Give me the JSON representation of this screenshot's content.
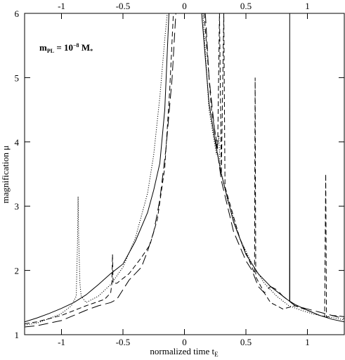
{
  "chart_data": {
    "type": "line",
    "xlabel": "normalized time t",
    "xlabel_sub": "E",
    "ylabel": "magnification μ",
    "annotation": {
      "symbol": "m",
      "symbol_sub": "PL",
      "equals": " = 10",
      "exponent": "−8",
      "unit": " M",
      "unit_sub": "*"
    },
    "xlim": [
      -1.3,
      1.3
    ],
    "ylim": [
      1,
      6
    ],
    "xticks": [
      -1,
      -0.5,
      0,
      0.5,
      1
    ],
    "yticks": [
      1,
      2,
      3,
      4,
      5,
      6
    ],
    "series": [
      {
        "color": "#000000",
        "style": "solid",
        "x": [
          -1.3,
          -1.2,
          -1.1,
          -1.0,
          -0.9,
          -0.8,
          -0.7,
          -0.6,
          -0.5,
          -0.4,
          -0.3,
          -0.25,
          -0.2,
          -0.16,
          -0.126,
          0,
          0.14,
          0.2,
          0.25,
          0.3,
          0.4,
          0.5,
          0.6,
          0.7,
          0.8,
          0.855,
          0.856,
          0.857,
          0.9,
          1.0,
          1.1,
          1.2,
          1.3
        ],
        "values": [
          1.2,
          1.26,
          1.33,
          1.41,
          1.5,
          1.62,
          1.78,
          1.95,
          2.1,
          2.45,
          2.9,
          3.25,
          3.67,
          4.5,
          6,
          null,
          6,
          4.6,
          4.0,
          3.5,
          2.75,
          2.25,
          1.95,
          1.75,
          1.6,
          1.52,
          6,
          1.52,
          1.47,
          1.38,
          1.3,
          1.24,
          1.2
        ]
      },
      {
        "color": "#000000",
        "style": "dotted",
        "x": [
          -1.3,
          -1.2,
          -1.1,
          -1.0,
          -0.92,
          -0.88,
          -0.87,
          -0.865,
          -0.86,
          -0.85,
          -0.84,
          -0.8,
          -0.7,
          -0.6,
          -0.5,
          -0.4,
          -0.3,
          -0.25,
          -0.2,
          -0.16,
          -0.14,
          0,
          0.15,
          0.2,
          0.26,
          0.28,
          0.29,
          0.35,
          0.45,
          0.55,
          0.65,
          0.75,
          0.85,
          0.95,
          1.05,
          1.15,
          1.25,
          1.3
        ],
        "values": [
          1.15,
          1.18,
          1.25,
          1.33,
          1.45,
          1.6,
          2.4,
          3.15,
          2.5,
          1.8,
          1.6,
          1.5,
          1.6,
          1.78,
          2.05,
          2.5,
          3.2,
          3.8,
          4.7,
          5.6,
          6,
          null,
          6,
          4.5,
          3.8,
          4.1,
          3.6,
          3.1,
          2.5,
          2.1,
          1.8,
          1.6,
          1.45,
          1.38,
          1.32,
          1.28,
          1.25,
          1.23
        ]
      },
      {
        "color": "#000000",
        "style": "dashed",
        "x": [
          -1.3,
          -1.2,
          -1.0,
          -0.8,
          -0.65,
          -0.6,
          -0.59,
          -0.585,
          -0.58,
          -0.55,
          -0.45,
          -0.35,
          -0.28,
          -0.22,
          -0.16,
          -0.12,
          -0.09,
          0,
          0.16,
          0.22,
          0.27,
          0.285,
          0.3,
          0.32,
          0.33,
          0.45,
          0.55,
          0.57,
          0.575,
          0.58,
          0.65,
          0.7,
          0.8,
          0.9,
          1.0,
          1.1,
          1.14,
          1.149,
          1.155,
          1.2,
          1.3
        ],
        "values": [
          1.17,
          1.2,
          1.3,
          1.45,
          1.55,
          1.65,
          1.8,
          2.25,
          1.8,
          1.8,
          1.95,
          2.2,
          2.4,
          2.8,
          3.6,
          4.8,
          6,
          null,
          6,
          4.5,
          3.9,
          6,
          3.5,
          6,
          3.3,
          2.5,
          2.05,
          1.95,
          5,
          1.9,
          1.65,
          1.5,
          1.4,
          1.45,
          1.38,
          1.3,
          1.28,
          3.5,
          1.27,
          1.3,
          1.28
        ]
      },
      {
        "color": "#000000",
        "style": "long-dashed",
        "x": [
          -1.3,
          -1.2,
          -1.0,
          -0.8,
          -0.7,
          -0.6,
          -0.55,
          -0.5,
          -0.45,
          -0.4,
          -0.35,
          -0.3,
          -0.25,
          -0.2,
          -0.15,
          -0.1,
          -0.07,
          0,
          0.17,
          0.2,
          0.25,
          0.3,
          0.4,
          0.5,
          0.55,
          0.6,
          0.65,
          0.7,
          0.75,
          0.8,
          0.9,
          1.0,
          1.1,
          1.2,
          1.3
        ],
        "values": [
          1.12,
          1.14,
          1.22,
          1.38,
          1.45,
          1.5,
          1.55,
          1.7,
          1.85,
          1.95,
          2.05,
          2.3,
          2.6,
          3.1,
          3.9,
          5.0,
          6,
          null,
          6,
          5.0,
          4.1,
          3.4,
          2.6,
          2.15,
          2.0,
          1.75,
          1.65,
          1.75,
          1.7,
          1.6,
          1.45,
          1.4,
          1.35,
          1.3,
          1.25
        ]
      }
    ]
  }
}
